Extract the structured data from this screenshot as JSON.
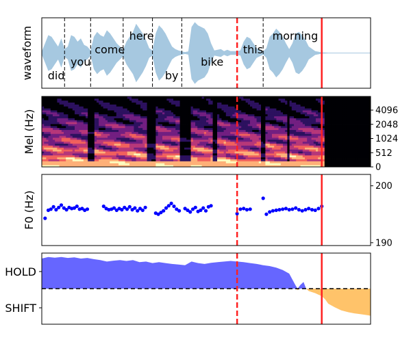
{
  "chart_data": [
    {
      "panel": "waveform",
      "type": "area",
      "ylabel": "waveform",
      "color": "#a6c8e0",
      "x_range": [
        0,
        5.05
      ],
      "events": {
        "dashed_red_x": 3.0,
        "solid_red_x": 4.3
      },
      "word_boundaries": [
        0.35,
        0.75,
        1.25,
        1.7,
        2.15,
        3.4
      ],
      "words": [
        {
          "text": "did",
          "x": 0.05,
          "level": "low"
        },
        {
          "text": "you",
          "x": 0.4,
          "level": "mid"
        },
        {
          "text": "come",
          "x": 0.77,
          "level": "upper"
        },
        {
          "text": "here",
          "x": 1.3,
          "level": "top"
        },
        {
          "text": "by",
          "x": 1.85,
          "level": "low"
        },
        {
          "text": "bike",
          "x": 2.4,
          "level": "mid"
        },
        {
          "text": "this",
          "x": 3.05,
          "level": "upper"
        },
        {
          "text": "morning",
          "x": 3.5,
          "level": "top"
        }
      ],
      "envelope": [
        [
          0.0,
          0.05
        ],
        [
          0.05,
          0.3
        ],
        [
          0.1,
          0.55
        ],
        [
          0.15,
          0.5
        ],
        [
          0.2,
          0.35
        ],
        [
          0.25,
          0.2
        ],
        [
          0.3,
          0.45
        ],
        [
          0.35,
          0.12
        ],
        [
          0.4,
          0.2
        ],
        [
          0.45,
          0.55
        ],
        [
          0.5,
          0.5
        ],
        [
          0.55,
          0.35
        ],
        [
          0.6,
          0.45
        ],
        [
          0.65,
          0.25
        ],
        [
          0.7,
          0.2
        ],
        [
          0.75,
          0.08
        ],
        [
          0.8,
          0.5
        ],
        [
          0.85,
          0.65
        ],
        [
          0.9,
          0.55
        ],
        [
          0.95,
          0.5
        ],
        [
          1.0,
          0.7
        ],
        [
          1.05,
          0.6
        ],
        [
          1.1,
          0.45
        ],
        [
          1.15,
          0.3
        ],
        [
          1.2,
          0.2
        ],
        [
          1.25,
          0.1
        ],
        [
          1.3,
          0.35
        ],
        [
          1.35,
          0.5
        ],
        [
          1.4,
          0.65
        ],
        [
          1.45,
          0.9
        ],
        [
          1.5,
          0.75
        ],
        [
          1.55,
          0.6
        ],
        [
          1.6,
          0.4
        ],
        [
          1.65,
          0.15
        ],
        [
          1.7,
          0.08
        ],
        [
          1.75,
          0.6
        ],
        [
          1.8,
          0.85
        ],
        [
          1.85,
          0.75
        ],
        [
          1.9,
          0.6
        ],
        [
          1.95,
          0.4
        ],
        [
          2.0,
          0.2
        ],
        [
          2.05,
          0.12
        ],
        [
          2.1,
          0.08
        ],
        [
          2.15,
          0.05
        ],
        [
          2.2,
          0.03
        ],
        [
          2.25,
          0.05
        ],
        [
          2.3,
          0.8
        ],
        [
          2.35,
          0.95
        ],
        [
          2.4,
          0.85
        ],
        [
          2.45,
          0.8
        ],
        [
          2.5,
          0.75
        ],
        [
          2.55,
          0.6
        ],
        [
          2.6,
          0.3
        ],
        [
          2.65,
          0.08
        ],
        [
          2.7,
          0.1
        ],
        [
          2.75,
          0.12
        ],
        [
          2.8,
          0.06
        ],
        [
          2.85,
          0.1
        ],
        [
          2.9,
          0.06
        ],
        [
          3.0,
          0.06
        ],
        [
          3.05,
          0.08
        ],
        [
          3.1,
          0.35
        ],
        [
          3.15,
          0.5
        ],
        [
          3.2,
          0.45
        ],
        [
          3.25,
          0.3
        ],
        [
          3.3,
          0.15
        ],
        [
          3.4,
          0.05
        ],
        [
          3.45,
          0.15
        ],
        [
          3.5,
          0.5
        ],
        [
          3.55,
          0.6
        ],
        [
          3.6,
          0.75
        ],
        [
          3.65,
          0.65
        ],
        [
          3.7,
          0.5
        ],
        [
          3.75,
          0.3
        ],
        [
          3.8,
          0.12
        ],
        [
          3.85,
          0.3
        ],
        [
          3.9,
          0.6
        ],
        [
          3.95,
          0.65
        ],
        [
          4.0,
          0.55
        ],
        [
          4.05,
          0.4
        ],
        [
          4.1,
          0.2
        ],
        [
          4.2,
          0.06
        ],
        [
          4.3,
          0.02
        ],
        [
          4.4,
          0.01
        ],
        [
          5.05,
          0.01
        ]
      ]
    },
    {
      "panel": "mel",
      "type": "heatmap",
      "ylabel": "Mel (Hz)",
      "yticks": [
        "0",
        "512",
        "1024",
        "2048",
        "4096"
      ],
      "x_range": [
        0,
        5.05
      ],
      "events": {
        "dashed_red_x": 3.0,
        "solid_red_x": 4.3
      },
      "speech_end_x": 4.35,
      "gaps": [
        [
          0.72,
          0.8
        ],
        [
          1.62,
          1.75
        ],
        [
          2.12,
          2.3
        ],
        [
          2.62,
          2.68
        ],
        [
          3.38,
          3.45
        ],
        [
          3.78,
          3.82
        ]
      ],
      "colors": [
        "#000004",
        "#2c115f",
        "#721f81",
        "#b73779",
        "#f1605d",
        "#feb078",
        "#fcfdbf"
      ]
    },
    {
      "panel": "f0",
      "type": "scatter",
      "ylabel": "F0 (Hz)",
      "yticks": [
        190,
        200
      ],
      "ylim": [
        189.5,
        202
      ],
      "x_range": [
        0,
        5.05
      ],
      "color": "#0000ff",
      "events": {
        "dashed_red_x": 3.0,
        "solid_red_x": 4.3
      },
      "points": [
        [
          0.05,
          194.3
        ],
        [
          0.1,
          195.7
        ],
        [
          0.14,
          195.9
        ],
        [
          0.18,
          196.3
        ],
        [
          0.22,
          195.8
        ],
        [
          0.26,
          196.2
        ],
        [
          0.3,
          196.6
        ],
        [
          0.34,
          196.1
        ],
        [
          0.38,
          195.8
        ],
        [
          0.42,
          196.2
        ],
        [
          0.46,
          196.0
        ],
        [
          0.5,
          196.1
        ],
        [
          0.54,
          196.4
        ],
        [
          0.58,
          195.9
        ],
        [
          0.62,
          196.0
        ],
        [
          0.66,
          195.7
        ],
        [
          0.7,
          195.9
        ],
        [
          0.95,
          196.4
        ],
        [
          0.99,
          196.0
        ],
        [
          1.03,
          195.8
        ],
        [
          1.07,
          195.9
        ],
        [
          1.11,
          196.1
        ],
        [
          1.15,
          195.7
        ],
        [
          1.19,
          196.0
        ],
        [
          1.23,
          195.8
        ],
        [
          1.27,
          196.2
        ],
        [
          1.31,
          195.9
        ],
        [
          1.35,
          196.3
        ],
        [
          1.39,
          195.8
        ],
        [
          1.43,
          196.1
        ],
        [
          1.47,
          195.6
        ],
        [
          1.51,
          196.0
        ],
        [
          1.55,
          195.7
        ],
        [
          1.59,
          196.2
        ],
        [
          1.75,
          195.2
        ],
        [
          1.79,
          195.0
        ],
        [
          1.83,
          195.3
        ],
        [
          1.87,
          195.6
        ],
        [
          1.91,
          196.1
        ],
        [
          1.95,
          196.5
        ],
        [
          1.99,
          196.9
        ],
        [
          2.03,
          196.4
        ],
        [
          2.07,
          195.9
        ],
        [
          2.11,
          195.6
        ],
        [
          2.2,
          196.0
        ],
        [
          2.24,
          195.7
        ],
        [
          2.28,
          195.4
        ],
        [
          2.32,
          195.9
        ],
        [
          2.36,
          196.2
        ],
        [
          2.4,
          195.5
        ],
        [
          2.44,
          195.7
        ],
        [
          2.48,
          196.1
        ],
        [
          2.52,
          195.6
        ],
        [
          2.56,
          196.3
        ],
        [
          2.6,
          196.5
        ],
        [
          3.0,
          195.1
        ],
        [
          3.05,
          195.9
        ],
        [
          3.1,
          196.0
        ],
        [
          3.15,
          195.8
        ],
        [
          3.2,
          195.9
        ],
        [
          3.4,
          197.8
        ],
        [
          3.45,
          195.0
        ],
        [
          3.5,
          195.4
        ],
        [
          3.55,
          195.6
        ],
        [
          3.6,
          195.7
        ],
        [
          3.65,
          195.8
        ],
        [
          3.7,
          195.9
        ],
        [
          3.75,
          196.0
        ],
        [
          3.8,
          195.8
        ],
        [
          3.85,
          195.9
        ],
        [
          3.9,
          196.1
        ],
        [
          3.95,
          195.8
        ],
        [
          4.0,
          195.6
        ],
        [
          4.05,
          195.8
        ],
        [
          4.1,
          196.0
        ],
        [
          4.15,
          195.8
        ],
        [
          4.2,
          195.7
        ],
        [
          4.25,
          196.0
        ],
        [
          4.3,
          196.4
        ]
      ]
    },
    {
      "panel": "turn",
      "type": "area",
      "yticks": [
        "HOLD",
        "SHIFT"
      ],
      "x_range": [
        0,
        5.05
      ],
      "hold_color": "#6666ff",
      "shift_color": "#ffc36a",
      "threshold_line": 0.0,
      "events": {
        "dashed_red_x": 3.0,
        "solid_red_x": 4.3
      },
      "series": [
        [
          0.0,
          1.0
        ],
        [
          0.1,
          1.05
        ],
        [
          0.2,
          1.03
        ],
        [
          0.3,
          1.05
        ],
        [
          0.4,
          1.02
        ],
        [
          0.5,
          1.04
        ],
        [
          0.6,
          1.0
        ],
        [
          0.7,
          1.02
        ],
        [
          0.8,
          0.98
        ],
        [
          0.9,
          0.95
        ],
        [
          1.0,
          0.9
        ],
        [
          1.1,
          0.93
        ],
        [
          1.2,
          0.95
        ],
        [
          1.3,
          0.92
        ],
        [
          1.4,
          0.95
        ],
        [
          1.5,
          0.88
        ],
        [
          1.6,
          0.9
        ],
        [
          1.7,
          0.85
        ],
        [
          1.8,
          0.88
        ],
        [
          1.9,
          0.85
        ],
        [
          2.0,
          0.82
        ],
        [
          2.1,
          0.8
        ],
        [
          2.2,
          0.78
        ],
        [
          2.3,
          0.9
        ],
        [
          2.4,
          0.85
        ],
        [
          2.5,
          0.82
        ],
        [
          2.6,
          0.86
        ],
        [
          2.7,
          0.88
        ],
        [
          2.8,
          0.9
        ],
        [
          2.9,
          0.92
        ],
        [
          3.0,
          0.9
        ],
        [
          3.1,
          0.88
        ],
        [
          3.2,
          0.85
        ],
        [
          3.3,
          0.82
        ],
        [
          3.4,
          0.78
        ],
        [
          3.5,
          0.75
        ],
        [
          3.6,
          0.7
        ],
        [
          3.7,
          0.62
        ],
        [
          3.8,
          0.5
        ],
        [
          3.85,
          0.3
        ],
        [
          3.9,
          0.1
        ],
        [
          3.93,
          -0.05
        ],
        [
          3.97,
          0.12
        ],
        [
          4.02,
          0.22
        ],
        [
          4.06,
          0.0
        ],
        [
          4.1,
          -0.08
        ],
        [
          4.2,
          -0.15
        ],
        [
          4.3,
          -0.25
        ],
        [
          4.35,
          -0.35
        ],
        [
          4.4,
          -0.5
        ],
        [
          4.5,
          -0.62
        ],
        [
          4.6,
          -0.72
        ],
        [
          4.7,
          -0.78
        ],
        [
          4.8,
          -0.82
        ],
        [
          4.9,
          -0.85
        ],
        [
          5.0,
          -0.88
        ],
        [
          5.05,
          -0.9
        ]
      ]
    }
  ]
}
